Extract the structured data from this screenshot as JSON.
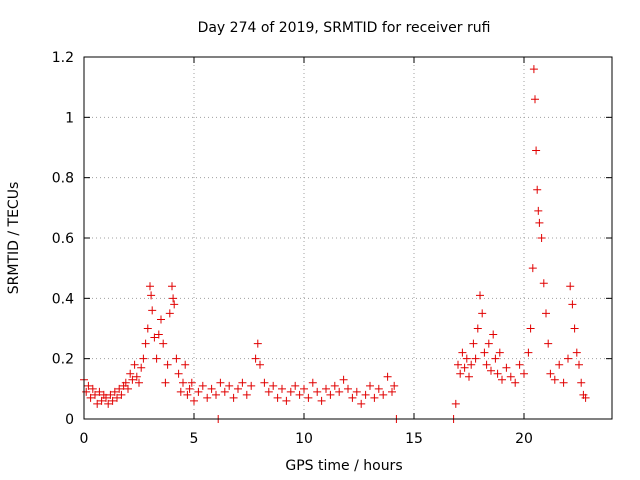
{
  "chart_data": {
    "type": "scatter",
    "title": "Day 274 of 2019, SRMTID for receiver rufi",
    "xlabel": "GPS time / hours",
    "ylabel": "SRMTID / TECUs",
    "xlim": [
      0,
      24
    ],
    "ylim": [
      0,
      1.2
    ],
    "xticks": [
      0,
      5,
      10,
      15,
      20
    ],
    "xtick_labels": [
      "0",
      "5",
      "10",
      "15",
      "20"
    ],
    "yticks": [
      0,
      0.2,
      0.4,
      0.6,
      0.8,
      1.0,
      1.2
    ],
    "ytick_labels": [
      "0",
      "0.2",
      "0.4",
      "0.6",
      "0.8",
      "1",
      "1.2"
    ],
    "grid": true,
    "marker": "+",
    "color": "#e00000",
    "series": [
      {
        "name": "SRMTID",
        "points": [
          [
            0.0,
            0.13
          ],
          [
            0.1,
            0.09
          ],
          [
            0.2,
            0.11
          ],
          [
            0.3,
            0.07
          ],
          [
            0.4,
            0.1
          ],
          [
            0.5,
            0.08
          ],
          [
            0.6,
            0.05
          ],
          [
            0.7,
            0.09
          ],
          [
            0.8,
            0.06
          ],
          [
            0.9,
            0.08
          ],
          [
            1.0,
            0.07
          ],
          [
            1.1,
            0.05
          ],
          [
            1.2,
            0.08
          ],
          [
            1.3,
            0.06
          ],
          [
            1.4,
            0.09
          ],
          [
            1.5,
            0.07
          ],
          [
            1.6,
            0.1
          ],
          [
            1.7,
            0.08
          ],
          [
            1.8,
            0.11
          ],
          [
            1.9,
            0.12
          ],
          [
            2.0,
            0.1
          ],
          [
            2.1,
            0.15
          ],
          [
            2.2,
            0.13
          ],
          [
            2.3,
            0.18
          ],
          [
            2.4,
            0.14
          ],
          [
            2.5,
            0.12
          ],
          [
            2.6,
            0.17
          ],
          [
            2.7,
            0.2
          ],
          [
            2.8,
            0.25
          ],
          [
            2.9,
            0.3
          ],
          [
            3.0,
            0.44
          ],
          [
            3.05,
            0.41
          ],
          [
            3.1,
            0.36
          ],
          [
            3.2,
            0.27
          ],
          [
            3.3,
            0.2
          ],
          [
            3.4,
            0.28
          ],
          [
            3.5,
            0.33
          ],
          [
            3.6,
            0.25
          ],
          [
            3.7,
            0.12
          ],
          [
            3.8,
            0.18
          ],
          [
            3.9,
            0.35
          ],
          [
            4.0,
            0.44
          ],
          [
            4.05,
            0.4
          ],
          [
            4.1,
            0.38
          ],
          [
            4.2,
            0.2
          ],
          [
            4.3,
            0.15
          ],
          [
            4.4,
            0.09
          ],
          [
            4.5,
            0.12
          ],
          [
            4.6,
            0.18
          ],
          [
            4.7,
            0.08
          ],
          [
            4.8,
            0.1
          ],
          [
            4.9,
            0.12
          ],
          [
            5.0,
            0.06
          ],
          [
            5.2,
            0.09
          ],
          [
            5.4,
            0.11
          ],
          [
            5.6,
            0.07
          ],
          [
            5.8,
            0.1
          ],
          [
            6.0,
            0.08
          ],
          [
            6.1,
            0.0
          ],
          [
            6.2,
            0.12
          ],
          [
            6.4,
            0.09
          ],
          [
            6.6,
            0.11
          ],
          [
            6.8,
            0.07
          ],
          [
            7.0,
            0.1
          ],
          [
            7.2,
            0.12
          ],
          [
            7.4,
            0.08
          ],
          [
            7.6,
            0.11
          ],
          [
            7.8,
            0.2
          ],
          [
            7.9,
            0.25
          ],
          [
            8.0,
            0.18
          ],
          [
            8.2,
            0.12
          ],
          [
            8.4,
            0.09
          ],
          [
            8.6,
            0.11
          ],
          [
            8.8,
            0.07
          ],
          [
            9.0,
            0.1
          ],
          [
            9.2,
            0.06
          ],
          [
            9.4,
            0.09
          ],
          [
            9.6,
            0.11
          ],
          [
            9.8,
            0.08
          ],
          [
            10.0,
            0.1
          ],
          [
            10.2,
            0.07
          ],
          [
            10.4,
            0.12
          ],
          [
            10.6,
            0.09
          ],
          [
            10.8,
            0.06
          ],
          [
            11.0,
            0.1
          ],
          [
            11.2,
            0.08
          ],
          [
            11.4,
            0.11
          ],
          [
            11.6,
            0.09
          ],
          [
            11.8,
            0.13
          ],
          [
            12.0,
            0.1
          ],
          [
            12.2,
            0.07
          ],
          [
            12.4,
            0.09
          ],
          [
            12.6,
            0.05
          ],
          [
            12.8,
            0.08
          ],
          [
            13.0,
            0.11
          ],
          [
            13.2,
            0.07
          ],
          [
            13.4,
            0.1
          ],
          [
            13.6,
            0.08
          ],
          [
            13.8,
            0.14
          ],
          [
            14.0,
            0.09
          ],
          [
            14.1,
            0.11
          ],
          [
            14.2,
            0.0
          ],
          [
            16.8,
            0.0
          ],
          [
            16.9,
            0.05
          ],
          [
            17.0,
            0.18
          ],
          [
            17.1,
            0.15
          ],
          [
            17.2,
            0.22
          ],
          [
            17.3,
            0.17
          ],
          [
            17.4,
            0.2
          ],
          [
            17.5,
            0.14
          ],
          [
            17.6,
            0.18
          ],
          [
            17.7,
            0.25
          ],
          [
            17.8,
            0.2
          ],
          [
            17.9,
            0.3
          ],
          [
            18.0,
            0.41
          ],
          [
            18.1,
            0.35
          ],
          [
            18.2,
            0.22
          ],
          [
            18.3,
            0.18
          ],
          [
            18.4,
            0.25
          ],
          [
            18.5,
            0.16
          ],
          [
            18.6,
            0.28
          ],
          [
            18.7,
            0.2
          ],
          [
            18.8,
            0.15
          ],
          [
            18.9,
            0.22
          ],
          [
            19.0,
            0.13
          ],
          [
            19.2,
            0.17
          ],
          [
            19.4,
            0.14
          ],
          [
            19.6,
            0.12
          ],
          [
            19.8,
            0.18
          ],
          [
            20.0,
            0.15
          ],
          [
            20.2,
            0.22
          ],
          [
            20.3,
            0.3
          ],
          [
            20.4,
            0.5
          ],
          [
            20.45,
            1.16
          ],
          [
            20.5,
            1.06
          ],
          [
            20.55,
            0.89
          ],
          [
            20.6,
            0.76
          ],
          [
            20.65,
            0.69
          ],
          [
            20.7,
            0.65
          ],
          [
            20.8,
            0.6
          ],
          [
            20.9,
            0.45
          ],
          [
            21.0,
            0.35
          ],
          [
            21.1,
            0.25
          ],
          [
            21.2,
            0.15
          ],
          [
            21.4,
            0.13
          ],
          [
            21.6,
            0.18
          ],
          [
            21.8,
            0.12
          ],
          [
            22.0,
            0.2
          ],
          [
            22.1,
            0.44
          ],
          [
            22.2,
            0.38
          ],
          [
            22.3,
            0.3
          ],
          [
            22.4,
            0.22
          ],
          [
            22.5,
            0.18
          ],
          [
            22.6,
            0.12
          ],
          [
            22.7,
            0.08
          ],
          [
            22.8,
            0.07
          ]
        ]
      }
    ]
  }
}
